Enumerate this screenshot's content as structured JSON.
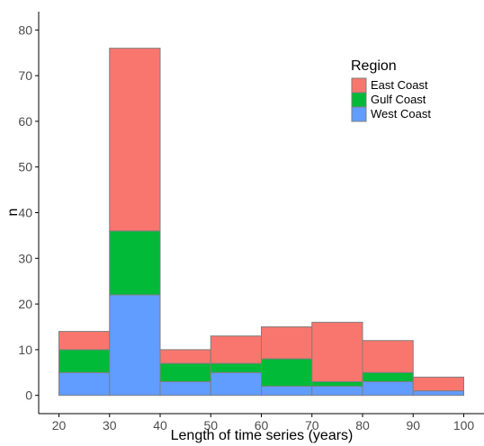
{
  "chart_data": {
    "type": "bar",
    "subtype": "stacked-histogram",
    "xlabel": "Length of time series (years)",
    "ylabel": "n",
    "xlim": [
      16,
      104
    ],
    "ylim": [
      -4,
      84
    ],
    "x_ticks": [
      20,
      30,
      40,
      50,
      60,
      70,
      80,
      90,
      100
    ],
    "y_ticks": [
      0,
      10,
      20,
      30,
      40,
      50,
      60,
      70,
      80
    ],
    "bins": [
      [
        20,
        30
      ],
      [
        30,
        40
      ],
      [
        40,
        50
      ],
      [
        50,
        60
      ],
      [
        60,
        70
      ],
      [
        70,
        80
      ],
      [
        80,
        90
      ],
      [
        90,
        100
      ]
    ],
    "stack_order": [
      "West Coast",
      "Gulf Coast",
      "East Coast"
    ],
    "series": [
      {
        "name": "West Coast",
        "color": "#619CFF",
        "values": [
          5,
          22,
          3,
          5,
          2,
          2,
          3,
          1
        ]
      },
      {
        "name": "Gulf Coast",
        "color": "#00BA38",
        "values": [
          5,
          14,
          4,
          2,
          6,
          1,
          2,
          0
        ]
      },
      {
        "name": "East Coast",
        "color": "#F8766D",
        "values": [
          4,
          40,
          3,
          6,
          7,
          13,
          7,
          3
        ]
      }
    ],
    "legend": {
      "title": "Region",
      "position": "top-right",
      "entries": [
        "East Coast",
        "Gulf Coast",
        "West Coast"
      ]
    },
    "grid": false,
    "bar_outline_color": "#7f7f7f"
  }
}
